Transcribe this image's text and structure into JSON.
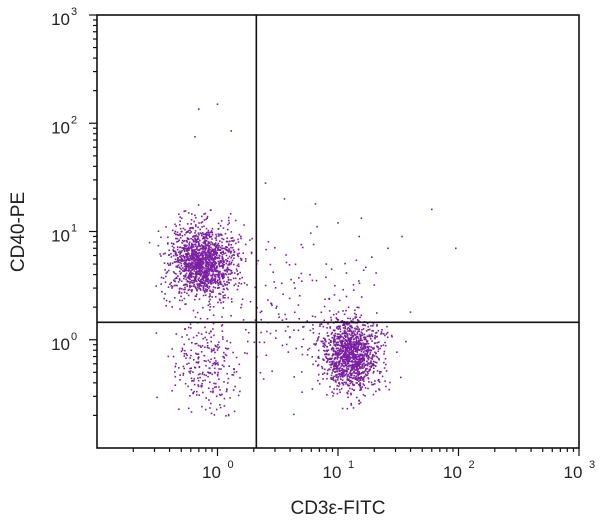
{
  "chart_data": {
    "type": "scatter",
    "xlabel": "CD3ε-FITC",
    "ylabel": "CD40-PE",
    "x_scale": "log",
    "y_scale": "log",
    "xlim": [
      0.1,
      1000
    ],
    "ylim": [
      0.1,
      1000
    ],
    "x_ticks": [
      {
        "value": 1,
        "base": "10",
        "exp": "0"
      },
      {
        "value": 10,
        "base": "10",
        "exp": "1"
      },
      {
        "value": 100,
        "base": "10",
        "exp": "2"
      },
      {
        "value": 1000,
        "base": "10",
        "exp": "3"
      }
    ],
    "y_ticks": [
      {
        "value": 1,
        "base": "10",
        "exp": "0"
      },
      {
        "value": 10,
        "base": "10",
        "exp": "1"
      },
      {
        "value": 100,
        "base": "10",
        "exp": "2"
      },
      {
        "value": 1000,
        "base": "10",
        "exp": "3"
      }
    ],
    "grid": false,
    "gates": {
      "x": 2.1,
      "y": 1.45
    },
    "point_color": "#7a1fa2",
    "populations": [
      {
        "center": [
          0.75,
          5.2
        ],
        "spread": [
          0.14,
          0.17
        ],
        "count": 1500
      },
      {
        "center": [
          13,
          0.72
        ],
        "spread": [
          0.12,
          0.16
        ],
        "count": 1300
      },
      {
        "center": [
          0.8,
          0.55
        ],
        "spread": [
          0.15,
          0.2
        ],
        "count": 260
      },
      {
        "center": [
          5,
          1.8
        ],
        "spread": [
          0.35,
          0.35
        ],
        "count": 160
      }
    ],
    "outliers": [
      [
        1.0,
        150
      ],
      [
        0.7,
        135
      ],
      [
        0.65,
        75
      ],
      [
        1.3,
        85
      ],
      [
        2.5,
        28
      ],
      [
        3.6,
        20
      ],
      [
        6.5,
        18
      ],
      [
        10,
        12
      ],
      [
        15,
        9
      ],
      [
        26,
        7
      ],
      [
        34,
        9
      ],
      [
        60,
        16
      ],
      [
        95,
        7
      ],
      [
        8,
        5
      ],
      [
        20,
        3.2
      ],
      [
        40,
        1.8
      ]
    ]
  }
}
